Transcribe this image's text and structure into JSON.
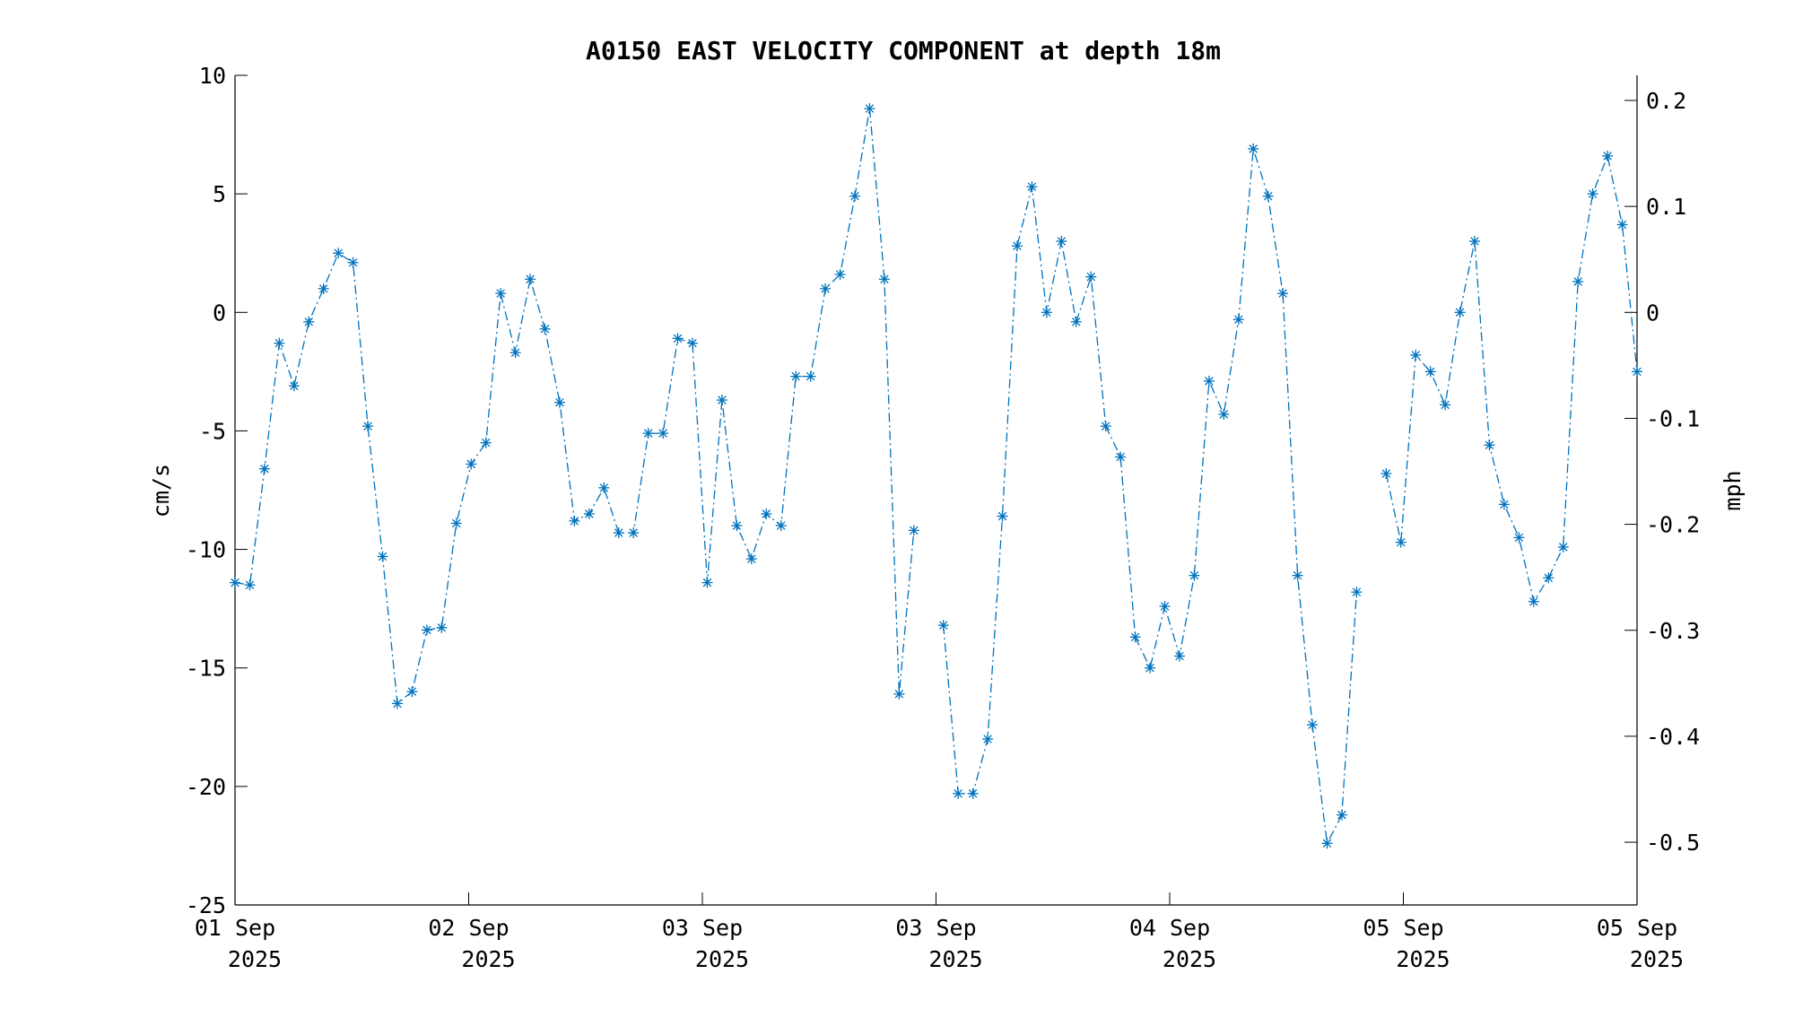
{
  "chart_data": {
    "type": "line",
    "title": "A0150 EAST VELOCITY COMPONENT at depth 18m",
    "ylabel": "cm/s",
    "y2label": "mph",
    "ylim": [
      -25,
      10
    ],
    "y2lim": [
      -0.5592,
      0.2237
    ],
    "yticks": [
      "10",
      "5",
      "0",
      "-5",
      "-10",
      "-15",
      "-20",
      "-25"
    ],
    "y2ticks": [
      "0.2",
      "0.1",
      "0",
      "-0.1",
      "-0.2",
      "-0.3",
      "-0.4",
      "-0.5"
    ],
    "xticks": [
      {
        "line1": "01 Sep",
        "line2": "2025"
      },
      {
        "line1": "02 Sep",
        "line2": "2025"
      },
      {
        "line1": "03 Sep",
        "line2": "2025"
      },
      {
        "line1": "03 Sep",
        "line2": "2025"
      },
      {
        "line1": "04 Sep",
        "line2": "2025"
      },
      {
        "line1": "05 Sep",
        "line2": "2025"
      },
      {
        "line1": "05 Sep",
        "line2": "2025"
      }
    ],
    "color": "#0072BD",
    "marker": "asterisk",
    "linestyle": "dash-dot",
    "grid": false,
    "series": [
      {
        "values": [
          -11.4,
          -11.5,
          -6.6,
          -1.3,
          -3.1,
          -0.4,
          1.0,
          2.5,
          2.1,
          -4.8,
          -10.3,
          -16.5,
          -16.0,
          -13.4,
          -13.3,
          -8.9,
          -6.4,
          -5.5,
          0.8,
          -1.7,
          1.4,
          -0.7,
          -3.8,
          -8.8,
          -8.5,
          -7.4,
          -9.3,
          -9.3,
          -5.1,
          -5.1,
          -1.1,
          -1.3,
          -11.4,
          -3.7,
          -9.0,
          -10.4,
          -8.5,
          -9.0,
          -2.7,
          -2.7,
          1.0,
          1.6,
          4.9,
          8.6,
          1.4,
          -16.1,
          -9.2,
          null,
          -13.2,
          -20.3,
          -20.3,
          -18.0,
          -8.6,
          2.8,
          5.3,
          0.0,
          3.0,
          -0.4,
          1.5,
          -4.8,
          -6.1,
          -13.7,
          -15.0,
          -12.4,
          -14.5,
          -11.1,
          -2.9,
          -4.3,
          -0.3,
          6.9,
          4.9,
          0.8,
          -11.1,
          -17.4,
          -22.4,
          -21.2,
          -11.8,
          null,
          -6.8,
          -9.7,
          -1.8,
          -2.5,
          -3.9,
          0.0,
          3.0,
          -5.6,
          -8.1,
          -9.5,
          -12.2,
          -11.2,
          -9.9,
          1.3,
          5.0,
          6.6,
          3.7,
          -2.5
        ]
      }
    ]
  }
}
